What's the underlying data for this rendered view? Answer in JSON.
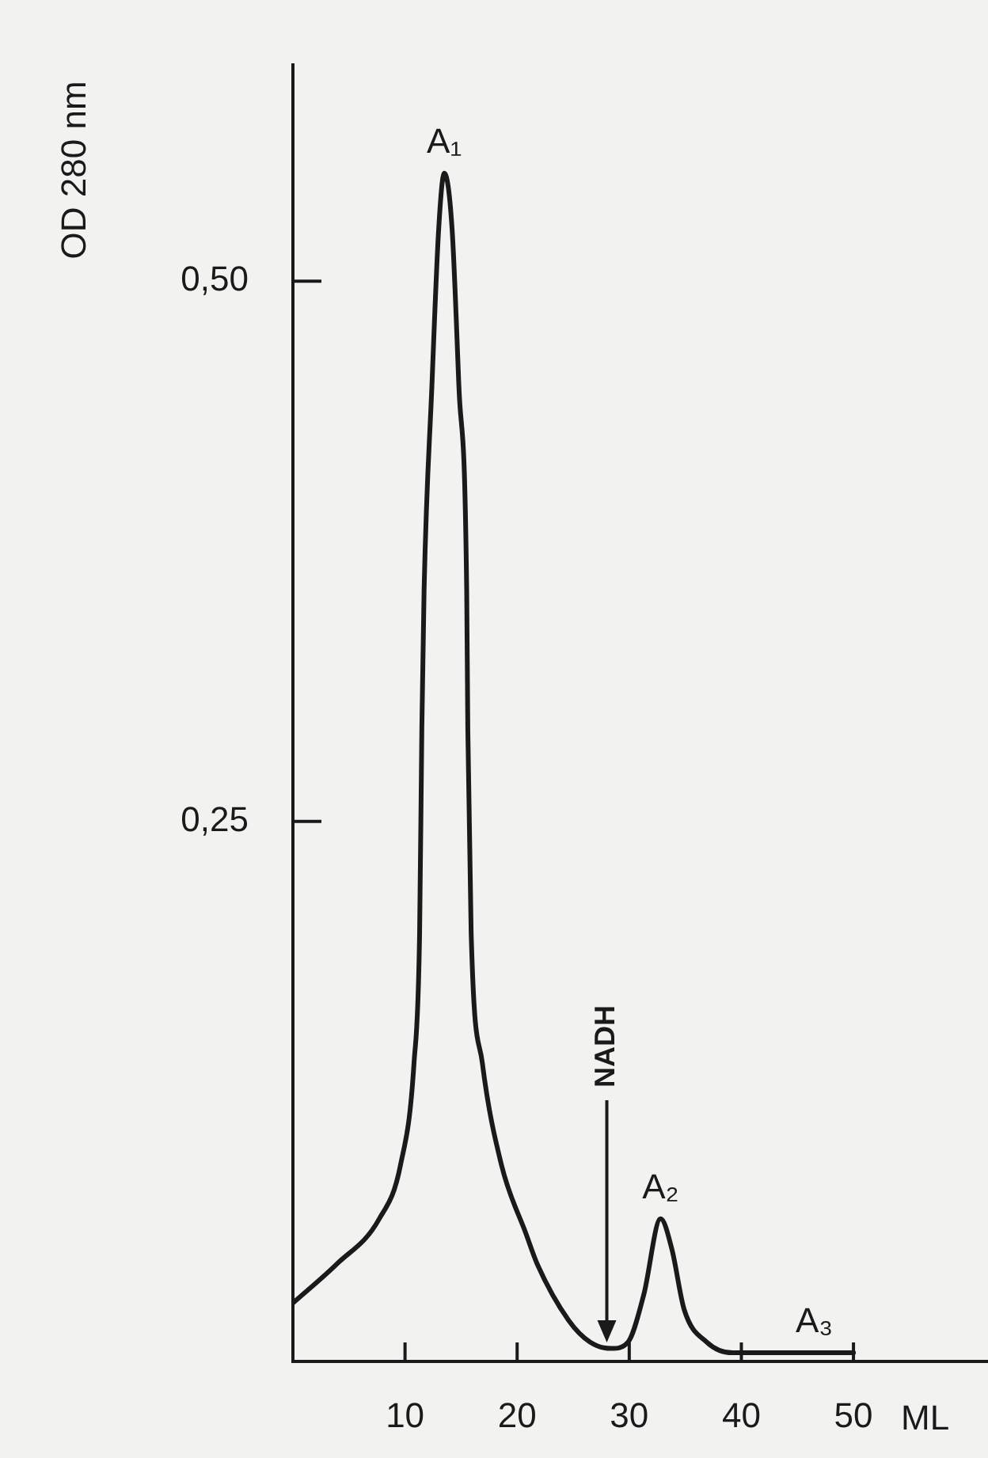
{
  "chart_data": {
    "type": "line",
    "ylabel": "OD 280 nm",
    "xlabel": "ML",
    "x": [
      0,
      3.9,
      7.7,
      9.6,
      10.8,
      11.3,
      11.5,
      11.7,
      12.4,
      13.0,
      13.5,
      14.2,
      14.8,
      15.5,
      15.6,
      15.9,
      16.9,
      18.6,
      20.8,
      21.8,
      24.6,
      26.5,
      28.4,
      29.9,
      31.3,
      32.8,
      33.8,
      34.9,
      36.9,
      39.2,
      50
    ],
    "series": [
      {
        "color": "#1a1a1a",
        "values": [
          0.027,
          0.045,
          0.066,
          0.091,
          0.138,
          0.198,
          0.293,
          0.357,
          0.452,
          0.524,
          0.55,
          0.524,
          0.452,
          0.357,
          0.293,
          0.198,
          0.138,
          0.091,
          0.059,
          0.045,
          0.019,
          0.009,
          0.006,
          0.009,
          0.031,
          0.066,
          0.052,
          0.024,
          0.009,
          0.004,
          0.004
        ]
      }
    ],
    "xlim": [
      0,
      62
    ],
    "xticks": [
      10,
      20,
      30,
      40,
      50
    ],
    "ylim": [
      0,
      0.6
    ],
    "yticks": [
      {
        "value": 0.25,
        "label": "0,25"
      },
      {
        "value": 0.5,
        "label": "0,50"
      }
    ],
    "annotations": [
      {
        "text": "A₁",
        "x": 13.5,
        "y": 0.55
      },
      {
        "text": "A₂",
        "x": 32.8,
        "y": 0.066
      },
      {
        "text": "A₃",
        "x": 46.5,
        "y": 0.004
      }
    ],
    "ref_lines": [
      {
        "axis": "x",
        "value": 28,
        "label": "NADH"
      }
    ],
    "grid": false,
    "legend": false,
    "marker": "none",
    "line_style": "solid"
  }
}
